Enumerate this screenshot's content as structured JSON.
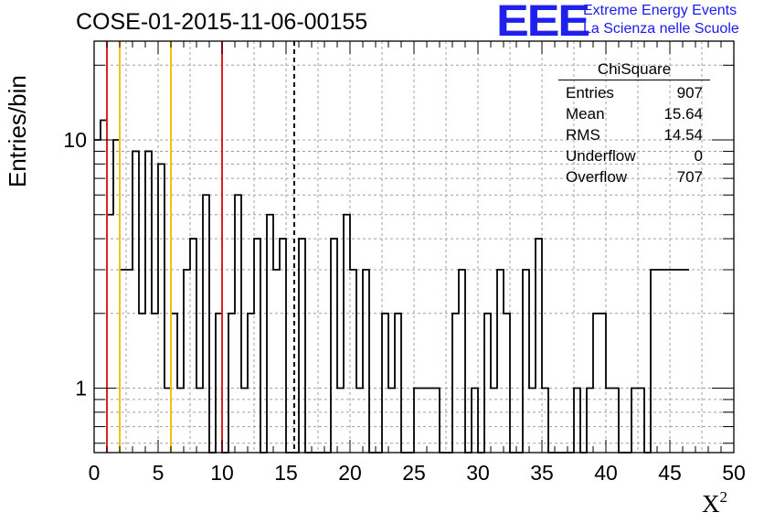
{
  "title": "COSE-01-2015-11-06-00155",
  "logo": {
    "mark": "EEE",
    "line1": "Extreme Energy Events",
    "line2": "La Scienza nelle Scuole",
    "color": "#2020ee"
  },
  "stats_box": {
    "name": "ChiSquare",
    "rows": [
      {
        "label": "Entries",
        "value": "907"
      },
      {
        "label": "Mean",
        "value": "15.64"
      },
      {
        "label": "RMS",
        "value": "14.54"
      },
      {
        "label": "Underflow",
        "value": "0"
      },
      {
        "label": "Overflow",
        "value": "707"
      }
    ]
  },
  "chart_data": {
    "type": "histogram",
    "title": "COSE-01-2015-11-06-00155",
    "xlabel": "X²",
    "ylabel": "Entries/bin",
    "xlim": [
      0,
      50
    ],
    "ylim": [
      0.55,
      25
    ],
    "yscale": "log",
    "grid": true,
    "bin_width": 0.5,
    "x_ticks": [
      "0",
      "5",
      "10",
      "15",
      "20",
      "25",
      "30",
      "35",
      "40",
      "45",
      "50"
    ],
    "y_ticks": [
      "1",
      "10"
    ],
    "values": [
      10,
      12,
      5,
      10,
      3,
      3,
      9,
      2,
      9,
      2,
      8,
      1,
      2,
      1,
      3,
      4,
      1,
      6,
      0,
      2,
      0,
      2,
      6,
      1,
      2,
      4,
      0,
      5,
      3,
      4,
      0,
      0,
      4,
      0,
      0,
      0,
      0,
      4,
      1,
      5,
      3,
      1,
      3,
      0,
      0,
      2,
      1,
      2,
      0,
      0,
      1,
      1,
      1,
      1,
      0,
      0,
      2,
      3,
      0,
      1,
      0,
      2,
      1,
      3,
      2,
      0,
      0,
      3,
      1,
      4,
      1,
      0,
      0,
      0,
      0,
      1,
      0,
      1,
      2,
      2,
      1,
      1,
      0,
      0,
      1,
      1,
      0,
      3,
      3,
      3,
      3,
      3,
      3
    ],
    "vertical_lines": [
      {
        "x": 1,
        "color": "#e02020",
        "style": "solid"
      },
      {
        "x": 2,
        "color": "#f2c200",
        "style": "solid"
      },
      {
        "x": 6,
        "color": "#f2c200",
        "style": "solid"
      },
      {
        "x": 10,
        "color": "#e02020",
        "style": "solid"
      },
      {
        "x": 15.64,
        "color": "#000000",
        "style": "dashed"
      }
    ]
  }
}
